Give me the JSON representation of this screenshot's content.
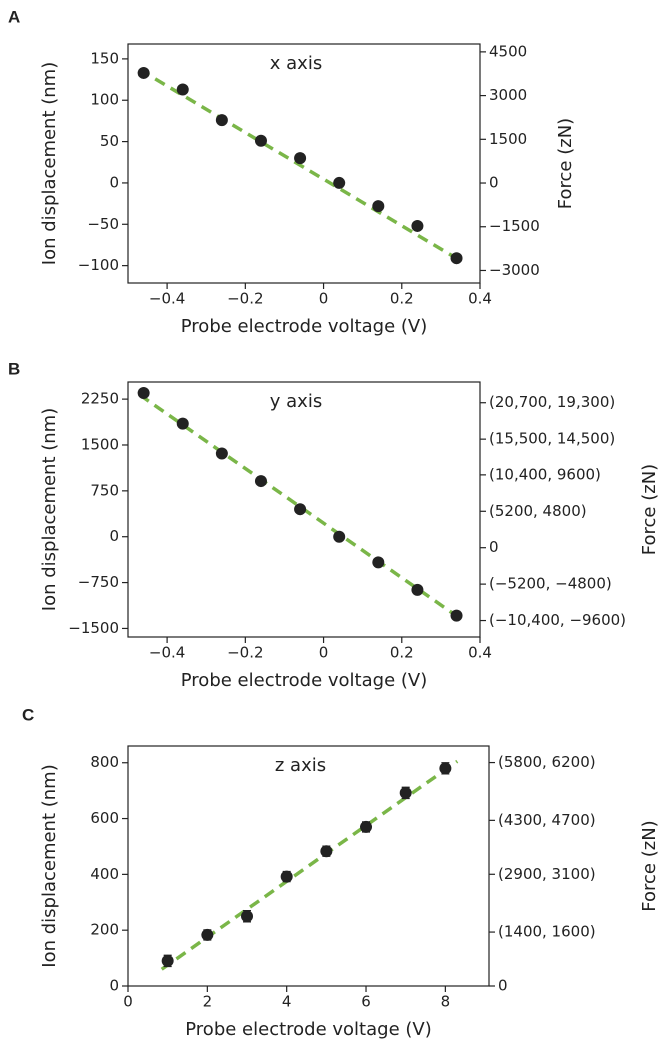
{
  "chart_data": [
    {
      "type": "scatter",
      "panel_label": "A",
      "title": "x axis",
      "xlabel": "Probe electrode voltage (V)",
      "ylabel": "Ion displacement (nm)",
      "y2label": "Force (zN)",
      "x": [
        -0.46,
        -0.36,
        -0.26,
        -0.16,
        -0.06,
        0.04,
        0.14,
        0.24,
        0.34
      ],
      "values": [
        133,
        113,
        76,
        51,
        30,
        0,
        -28,
        -52,
        -91
      ],
      "color": "#222222",
      "fit": {
        "x": [
          -0.47,
          0.35
        ],
        "values": [
          137,
          -94
        ],
        "color": "#7ab648"
      },
      "xlim": [
        -0.5,
        0.4
      ],
      "xticks": [
        {
          "value": -0.4,
          "label": "−0.4"
        },
        {
          "value": -0.2,
          "label": "−0.2"
        },
        0,
        0.2,
        0.4
      ],
      "ylim": [
        -121,
        168
      ],
      "yticks": [
        {
          "value": -100,
          "label": "−100"
        },
        {
          "value": -50,
          "label": "−50"
        },
        0,
        50,
        100,
        150
      ],
      "y2lim": [
        -3430,
        4770
      ],
      "y2ticks": [
        {
          "value": -3000,
          "label": "−3000"
        },
        {
          "value": -1500,
          "label": "−1500"
        },
        0,
        1500,
        3000,
        4500
      ]
    },
    {
      "type": "scatter",
      "panel_label": "B",
      "title": "y axis",
      "xlabel": "Probe electrode voltage (V)",
      "ylabel": "Ion displacement (nm)",
      "y2label": "Force (zN)",
      "x": [
        -0.46,
        -0.36,
        -0.26,
        -0.16,
        -0.06,
        0.04,
        0.14,
        0.24,
        0.34
      ],
      "values": [
        2350,
        1850,
        1360,
        910,
        450,
        0,
        -420,
        -870,
        -1290
      ],
      "color": "#222222",
      "fit": {
        "x": [
          -0.47,
          0.35
        ],
        "values": [
          2320,
          -1340
        ],
        "color": "#7ab648"
      },
      "xlim": [
        -0.5,
        0.4
      ],
      "xticks": [
        {
          "value": -0.4,
          "label": "−0.4"
        },
        {
          "value": -0.2,
          "label": "−0.2"
        },
        0,
        0.2,
        0.4
      ],
      "ylim": [
        -1640,
        2530
      ],
      "yticks": [
        {
          "value": -1500,
          "label": "−1500"
        },
        {
          "value": -750,
          "label": "−750"
        },
        0,
        750,
        1500,
        2250
      ],
      "y2lim": [
        -12750,
        23660
      ],
      "y2ticks": [
        {
          "value": -10400,
          "label": "(−10,400, −9600)"
        },
        {
          "value": -5200,
          "label": "(−5200, −4800)"
        },
        0,
        {
          "value": 5200,
          "label": "(5200, 4800)"
        },
        {
          "value": 10400,
          "label": "(10,400, 9600)"
        },
        {
          "value": 15500,
          "label": "(15,500, 14,500)"
        },
        {
          "value": 20700,
          "label": "(20,700, 19,300)"
        }
      ]
    },
    {
      "type": "scatter",
      "panel_label": "C",
      "title": "z axis",
      "xlabel": "Probe electrode voltage (V)",
      "ylabel": "Ion displacement (nm)",
      "y2label": "Force (zN)",
      "x": [
        1,
        2,
        3,
        4,
        5,
        6,
        7,
        8
      ],
      "values": [
        90,
        183,
        250,
        392,
        483,
        570,
        692,
        780
      ],
      "errors": [
        20,
        18,
        20,
        18,
        18,
        18,
        20,
        20
      ],
      "color": "#222222",
      "fit": {
        "x": [
          0.85,
          8.3
        ],
        "values": [
          60,
          805
        ],
        "color": "#7ab648"
      },
      "xlim": [
        0,
        9.1
      ],
      "xticks": [
        0,
        2,
        4,
        6,
        8
      ],
      "ylim": [
        0,
        860
      ],
      "yticks": [
        0,
        200,
        400,
        600,
        800
      ],
      "y2lim": [
        0,
        6230
      ],
      "y2ticks": [
        0,
        {
          "value": 1400,
          "label": "(1400, 1600)"
        },
        {
          "value": 2900,
          "label": "(2900, 3100)"
        },
        {
          "value": 4300,
          "label": "(4300, 4700)"
        },
        {
          "value": 5800,
          "label": "(5800, 6200)"
        }
      ]
    }
  ]
}
